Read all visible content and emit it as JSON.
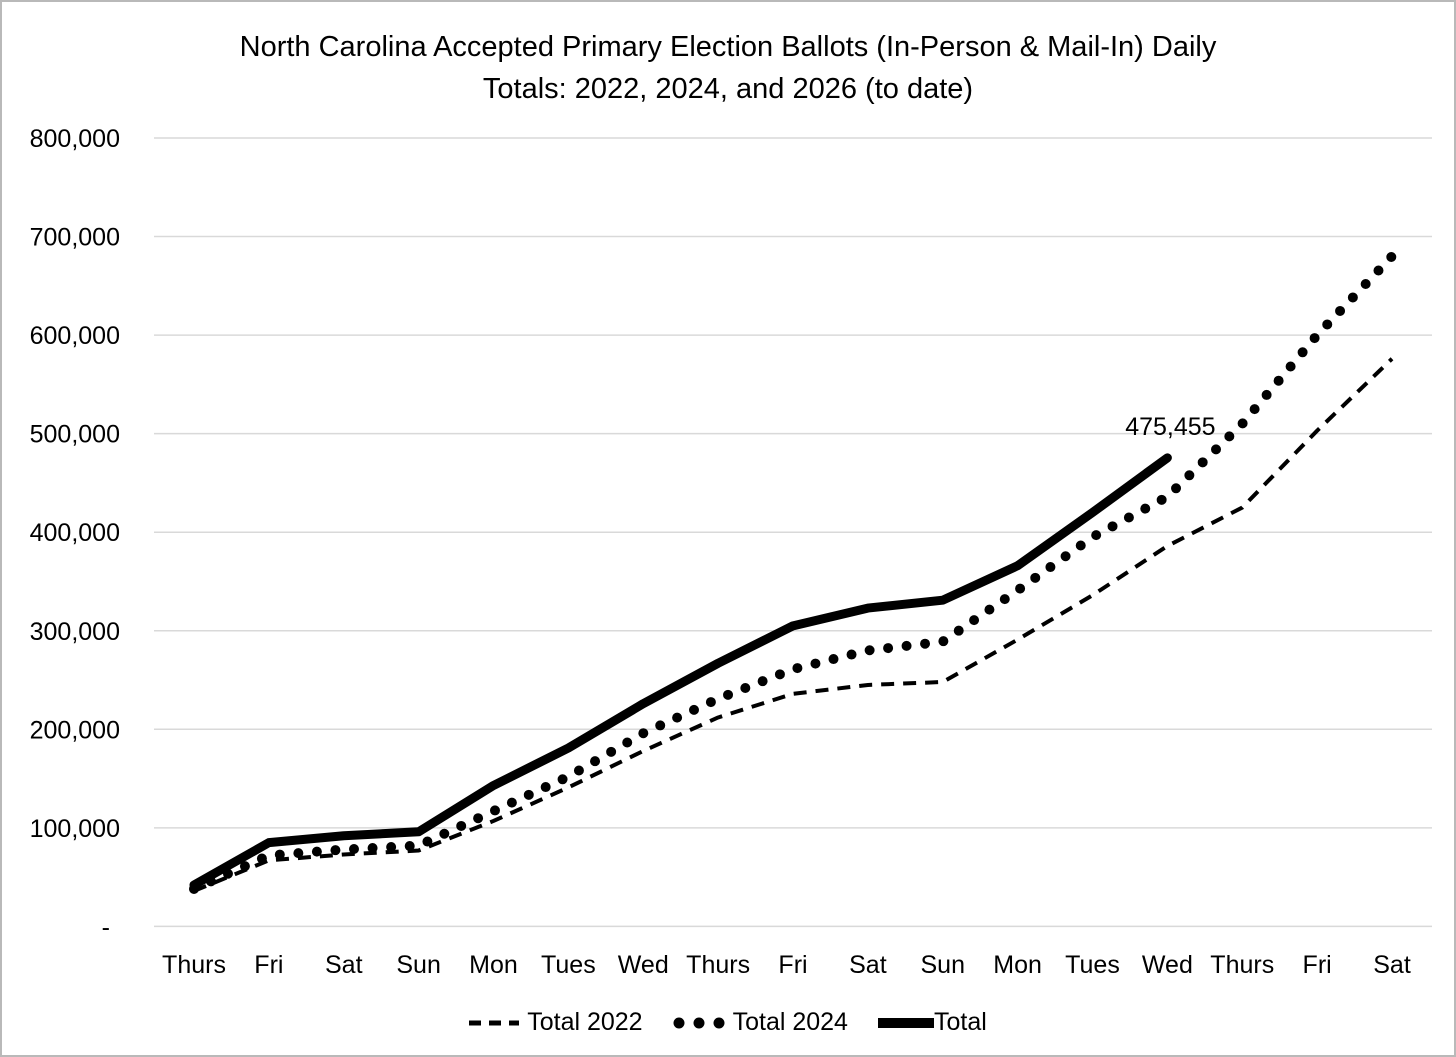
{
  "title": {
    "line1": "North Carolina Accepted Primary Election Ballots (In-Person & Mail-In) Daily",
    "line2": "Totals: 2022, 2024, and 2026 (to date)"
  },
  "colors": {
    "line": "#000000",
    "gridline": "#d9d9d9",
    "background": "#ffffff",
    "border": "#b9b9b9"
  },
  "chart_data": {
    "type": "line",
    "categories": [
      "Thurs",
      "Fri",
      "Sat",
      "Sun",
      "Mon",
      "Tues",
      "Wed",
      "Thurs",
      "Fri",
      "Sat",
      "Sun",
      "Mon",
      "Tues",
      "Wed",
      "Thurs",
      "Fri",
      "Sat"
    ],
    "series": [
      {
        "name": "Total 2022",
        "style": "dashed",
        "values": [
          36000,
          67000,
          73000,
          77000,
          107000,
          141000,
          178000,
          212000,
          236000,
          245000,
          248000,
          291000,
          336000,
          386000,
          425000,
          503000,
          576000
        ]
      },
      {
        "name": "Total 2024",
        "style": "dotted",
        "values": [
          38000,
          72000,
          78000,
          82000,
          117000,
          152000,
          196000,
          231000,
          261000,
          280000,
          289000,
          341000,
          395000,
          436000,
          510000,
          600000,
          680000
        ]
      },
      {
        "name": "Total",
        "style": "solid",
        "values": [
          42000,
          85000,
          92000,
          96000,
          143000,
          181000,
          226000,
          267000,
          305000,
          323000,
          331000,
          366000,
          420000,
          475455
        ]
      }
    ],
    "annotation": {
      "text": "475,455",
      "series": "Total",
      "point_index": 13,
      "value": 475455
    },
    "y_ticks": [
      "800,000",
      "700,000",
      "600,000",
      "500,000",
      "400,000",
      "300,000",
      "200,000",
      "100,000",
      "-"
    ],
    "ylim": [
      0,
      800000
    ],
    "xlabel": "",
    "ylabel": "",
    "grid": "horizontal",
    "legend_position": "bottom"
  }
}
